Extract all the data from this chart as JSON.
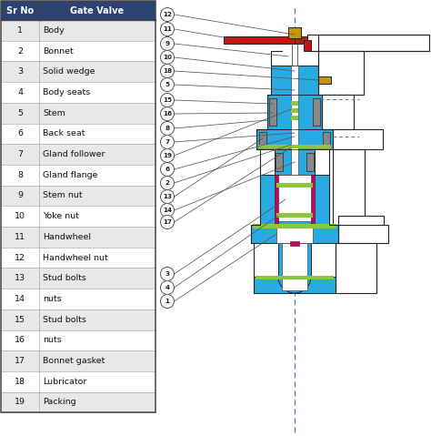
{
  "table_headers": [
    "Sr No",
    "Gate Valve"
  ],
  "table_rows": [
    [
      "1",
      "Body"
    ],
    [
      "2",
      "Bonnet"
    ],
    [
      "3",
      "Solid wedge"
    ],
    [
      "4",
      "Body seats"
    ],
    [
      "5",
      "Stem"
    ],
    [
      "6",
      "Back seat"
    ],
    [
      "7",
      "Gland follower"
    ],
    [
      "8",
      "Gland flange"
    ],
    [
      "9",
      "Stem nut"
    ],
    [
      "10",
      "Yoke nut"
    ],
    [
      "11",
      "Handwheel"
    ],
    [
      "12",
      "Handwheel nut"
    ],
    [
      "13",
      "Stud bolts"
    ],
    [
      "14",
      "nuts"
    ],
    [
      "15",
      "Stud bolts"
    ],
    [
      "16",
      "nuts"
    ],
    [
      "17",
      "Bonnet gasket"
    ],
    [
      "18",
      "Lubricator"
    ],
    [
      "19",
      "Packing"
    ]
  ],
  "header_bg": "#2c4270",
  "header_fg": "#ffffff",
  "row_bg_alt": "#e8e8e8",
  "row_bg_norm": "#ffffff",
  "grid_color": "#999999",
  "cyan_body": "#29abe2",
  "red_part": "#cc1111",
  "magenta_part": "#cc005a",
  "green_part": "#8dc63f",
  "gold_part": "#c8960c",
  "outline_color": "#222222",
  "dashed_color": "#5577bb",
  "label_circ_bg": "#ffffff",
  "label_circ_ec": "#555555"
}
